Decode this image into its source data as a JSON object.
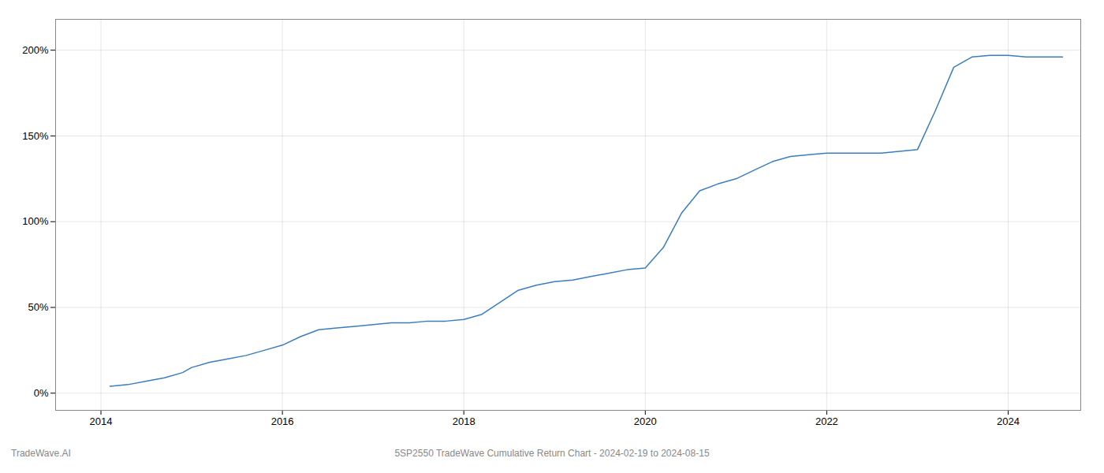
{
  "chart_data": {
    "type": "line",
    "title": "5SP2550 TradeWave Cumulative Return Chart - 2024-02-19 to 2024-08-15",
    "annotations": [
      "TradeWave.AI"
    ],
    "color": "#3a7ebf",
    "grid": true,
    "xlim": [
      2013.5,
      2024.8
    ],
    "xticks": [
      2014,
      2016,
      2018,
      2020,
      2022,
      2024
    ],
    "ylim": [
      -0.1,
      2.18
    ],
    "yticks": [
      {
        "value": 0.0,
        "label": "0%"
      },
      {
        "value": 0.5,
        "label": "50%"
      },
      {
        "value": 1.0,
        "label": "100%"
      },
      {
        "value": 1.5,
        "label": "150%"
      },
      {
        "value": 2.0,
        "label": "200%"
      }
    ],
    "x": [
      2014.1,
      2014.3,
      2014.5,
      2014.7,
      2014.9,
      2015.0,
      2015.2,
      2015.4,
      2015.6,
      2015.8,
      2016.0,
      2016.2,
      2016.4,
      2016.6,
      2016.8,
      2017.0,
      2017.2,
      2017.4,
      2017.6,
      2017.8,
      2018.0,
      2018.2,
      2018.4,
      2018.6,
      2018.8,
      2019.0,
      2019.2,
      2019.4,
      2019.6,
      2019.8,
      2020.0,
      2020.2,
      2020.4,
      2020.6,
      2020.8,
      2021.0,
      2021.2,
      2021.4,
      2021.6,
      2021.8,
      2022.0,
      2022.2,
      2022.4,
      2022.6,
      2022.8,
      2023.0,
      2023.2,
      2023.4,
      2023.6,
      2023.8,
      2024.0,
      2024.2,
      2024.4,
      2024.6
    ],
    "values": [
      0.04,
      0.05,
      0.07,
      0.09,
      0.12,
      0.15,
      0.18,
      0.2,
      0.22,
      0.25,
      0.28,
      0.33,
      0.37,
      0.38,
      0.39,
      0.4,
      0.41,
      0.41,
      0.42,
      0.42,
      0.43,
      0.46,
      0.53,
      0.6,
      0.63,
      0.65,
      0.66,
      0.68,
      0.7,
      0.72,
      0.73,
      0.85,
      1.05,
      1.18,
      1.22,
      1.25,
      1.3,
      1.35,
      1.38,
      1.39,
      1.4,
      1.4,
      1.4,
      1.4,
      1.41,
      1.42,
      1.65,
      1.9,
      1.96,
      1.97,
      1.97,
      1.96,
      1.96,
      1.96
    ]
  }
}
